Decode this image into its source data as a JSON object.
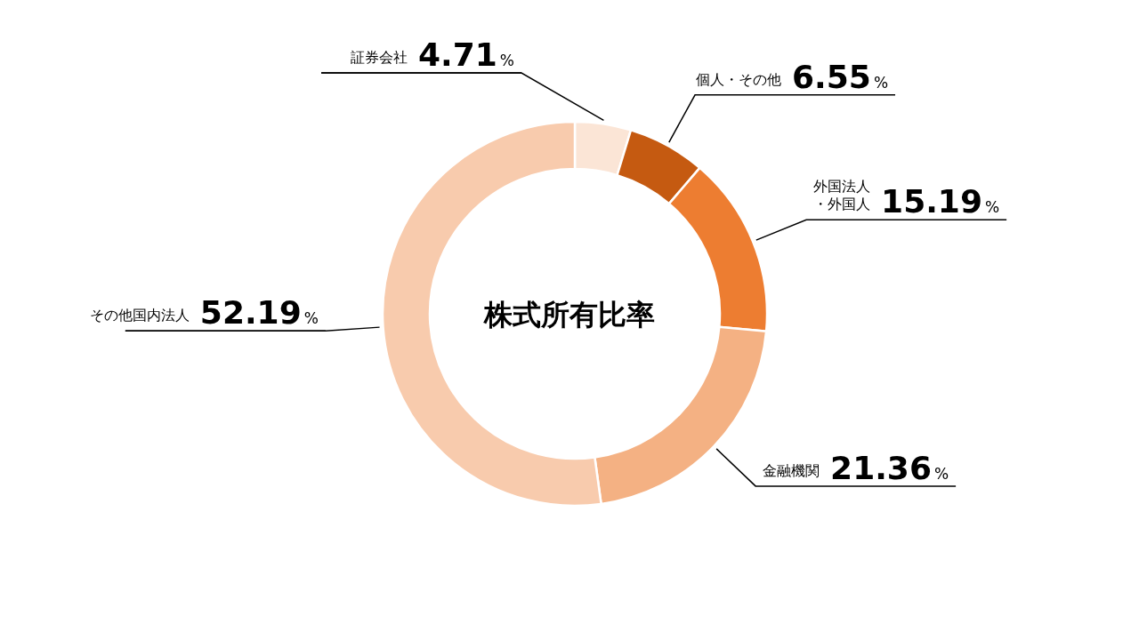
{
  "chart_data": {
    "type": "donut",
    "title": "株式所有比率",
    "categories": [
      "証券会社",
      "個人・その他",
      "外国法人・外国人",
      "金融機関",
      "その他国内法人"
    ],
    "values": [
      4.71,
      6.55,
      15.19,
      21.36,
      52.19
    ],
    "colors": [
      "#fbe5d6",
      "#c55a11",
      "#ed7d31",
      "#f4b183",
      "#f8cbad"
    ],
    "value_labels": [
      "4.71%",
      "6.55%",
      "15.19%",
      "21.36%",
      "52.19%"
    ]
  }
}
